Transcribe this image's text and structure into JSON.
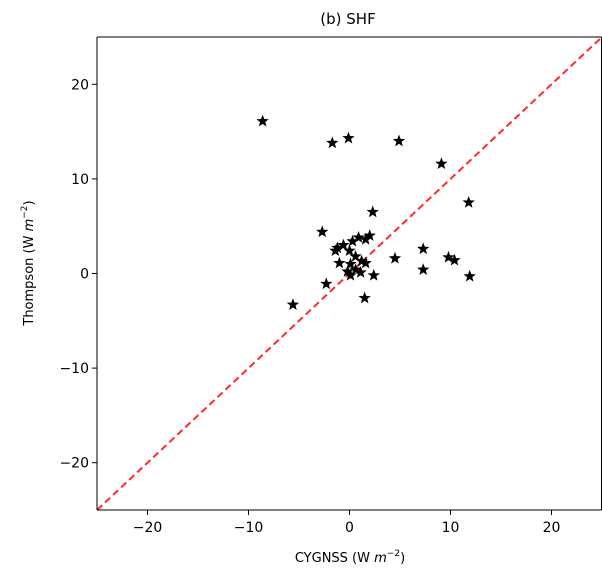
{
  "chart_data": {
    "type": "scatter",
    "title": "(b) SHF",
    "xlabel": {
      "prefix": "CYGNSS (W ",
      "var": "m",
      "exp": "−2",
      "suffix": ")"
    },
    "ylabel": {
      "prefix": "Thompson (W ",
      "var": "m",
      "exp": "−2",
      "suffix": ")"
    },
    "xlim": [
      -25,
      25
    ],
    "ylim": [
      -25,
      25
    ],
    "xticks": [
      -20,
      -10,
      0,
      10,
      20
    ],
    "yticks": [
      -20,
      -10,
      0,
      10,
      20
    ],
    "xtick_labels": [
      "−20",
      "−10",
      "0",
      "10",
      "20"
    ],
    "ytick_labels": [
      "−20",
      "−10",
      "0",
      "10",
      "20"
    ],
    "grid": false,
    "marker": "star",
    "marker_color": "#000000",
    "reference_line": {
      "type": "one-to-one",
      "style": "dashed",
      "color": "#ff2a2a"
    },
    "points": [
      {
        "x": -8.6,
        "y": 16.1
      },
      {
        "x": -1.7,
        "y": 13.8
      },
      {
        "x": -0.1,
        "y": 14.3
      },
      {
        "x": 4.9,
        "y": 14.0
      },
      {
        "x": 9.1,
        "y": 11.6
      },
      {
        "x": 11.8,
        "y": 7.5
      },
      {
        "x": 2.3,
        "y": 6.5
      },
      {
        "x": -2.7,
        "y": 4.4
      },
      {
        "x": 2.0,
        "y": 4.0
      },
      {
        "x": 1.6,
        "y": 3.6
      },
      {
        "x": 0.9,
        "y": 3.8
      },
      {
        "x": 0.3,
        "y": 3.4
      },
      {
        "x": -0.6,
        "y": 3.0
      },
      {
        "x": -1.2,
        "y": 2.7
      },
      {
        "x": -1.4,
        "y": 2.4
      },
      {
        "x": 0.0,
        "y": 2.4
      },
      {
        "x": 0.6,
        "y": 1.8
      },
      {
        "x": -1.0,
        "y": 1.1
      },
      {
        "x": 0.1,
        "y": 1.0
      },
      {
        "x": 1.2,
        "y": 1.3
      },
      {
        "x": 1.6,
        "y": 1.1
      },
      {
        "x": 0.6,
        "y": 0.4
      },
      {
        "x": -0.2,
        "y": 0.2
      },
      {
        "x": 1.1,
        "y": 0.1
      },
      {
        "x": 0.1,
        "y": -0.2
      },
      {
        "x": 2.4,
        "y": -0.2
      },
      {
        "x": 4.5,
        "y": 1.6
      },
      {
        "x": 7.3,
        "y": 2.6
      },
      {
        "x": 7.3,
        "y": 0.4
      },
      {
        "x": 9.8,
        "y": 1.7
      },
      {
        "x": 10.4,
        "y": 1.4
      },
      {
        "x": 11.9,
        "y": -0.3
      },
      {
        "x": -2.3,
        "y": -1.1
      },
      {
        "x": -5.6,
        "y": -3.3
      },
      {
        "x": 1.5,
        "y": -2.6
      }
    ]
  }
}
